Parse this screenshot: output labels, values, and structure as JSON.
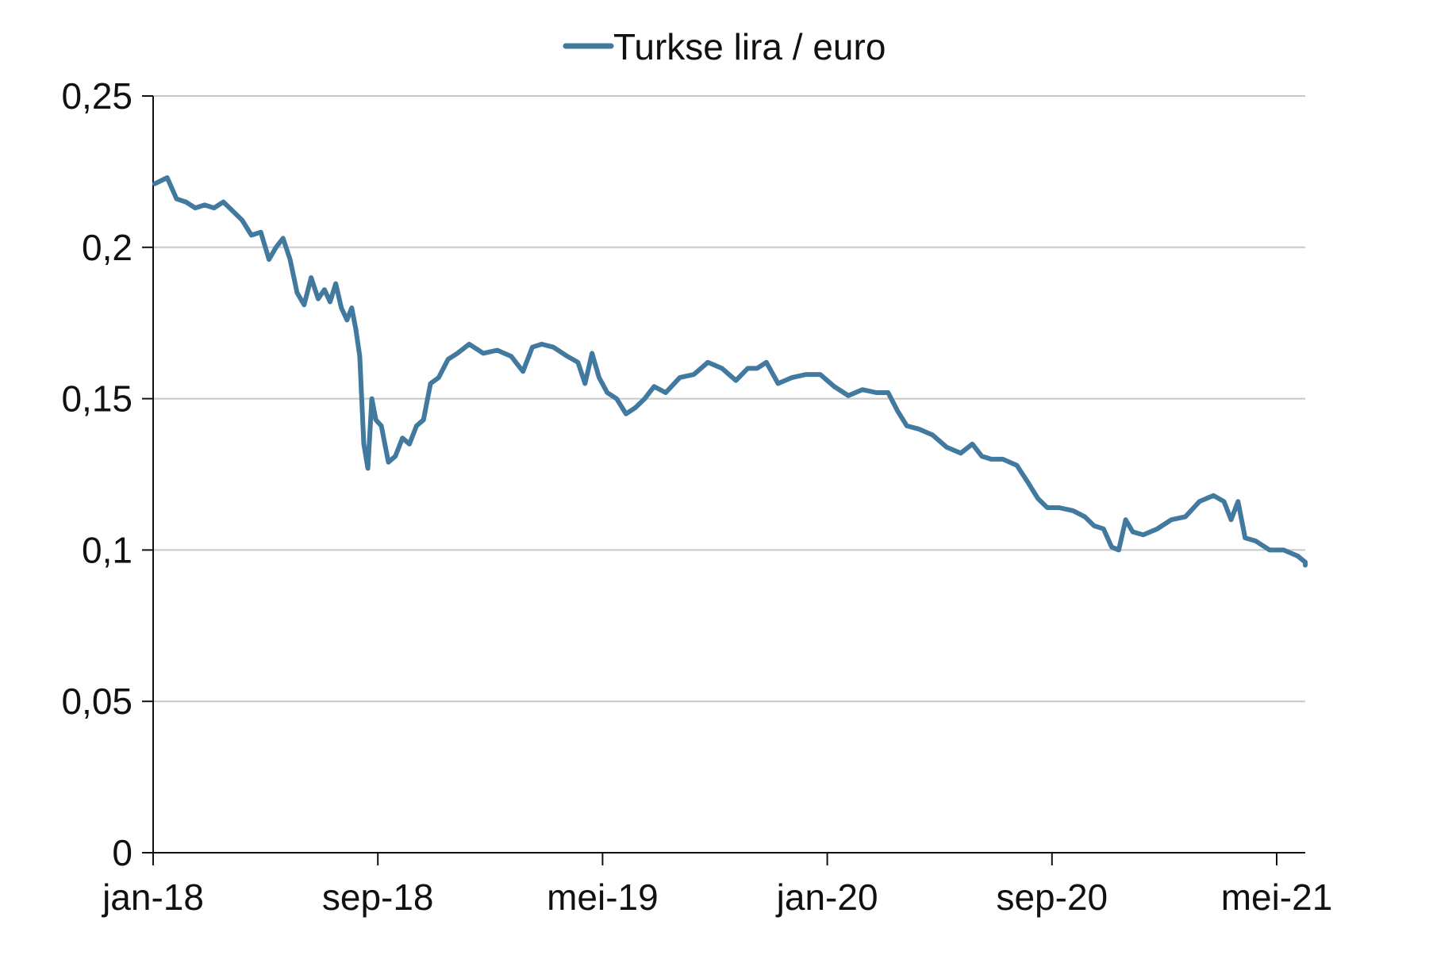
{
  "chart_data": {
    "type": "line",
    "title": "",
    "xlabel": "",
    "ylabel": "",
    "x_tick_labels": [
      "jan-18",
      "sep-18",
      "mei-19",
      "jan-20",
      "sep-20",
      "mei-21"
    ],
    "y_tick_labels": [
      "0",
      "0,05",
      "0,1",
      "0,15",
      "0,2",
      "0,25"
    ],
    "y_ticks": [
      0,
      0.05,
      0.1,
      0.15,
      0.2,
      0.25
    ],
    "ylim": [
      0,
      0.25
    ],
    "xlim": [
      "2018-01",
      "2021-06"
    ],
    "grid": "horizontal",
    "legend": {
      "placement": "top-center",
      "entries": [
        "Turkse lira / euro"
      ]
    },
    "series": [
      {
        "name": "Turkse lira / euro",
        "color": "#41799f",
        "points": [
          [
            "2018-01",
            0.221
          ],
          [
            "2018-01",
            0.223
          ],
          [
            "2018-01",
            0.216
          ],
          [
            "2018-02",
            0.215
          ],
          [
            "2018-02",
            0.213
          ],
          [
            "2018-02",
            0.214
          ],
          [
            "2018-03",
            0.213
          ],
          [
            "2018-03",
            0.215
          ],
          [
            "2018-03",
            0.212
          ],
          [
            "2018-04",
            0.209
          ],
          [
            "2018-04",
            0.204
          ],
          [
            "2018-04",
            0.205
          ],
          [
            "2018-05",
            0.196
          ],
          [
            "2018-05",
            0.2
          ],
          [
            "2018-05",
            0.203
          ],
          [
            "2018-05",
            0.196
          ],
          [
            "2018-06",
            0.185
          ],
          [
            "2018-06",
            0.181
          ],
          [
            "2018-06",
            0.19
          ],
          [
            "2018-06",
            0.183
          ],
          [
            "2018-07",
            0.186
          ],
          [
            "2018-07",
            0.182
          ],
          [
            "2018-07",
            0.188
          ],
          [
            "2018-07",
            0.18
          ],
          [
            "2018-07",
            0.176
          ],
          [
            "2018-08",
            0.18
          ],
          [
            "2018-08",
            0.173
          ],
          [
            "2018-08",
            0.164
          ],
          [
            "2018-08",
            0.135
          ],
          [
            "2018-08",
            0.127
          ],
          [
            "2018-08",
            0.15
          ],
          [
            "2018-08",
            0.143
          ],
          [
            "2018-09",
            0.141
          ],
          [
            "2018-09",
            0.129
          ],
          [
            "2018-09",
            0.131
          ],
          [
            "2018-09",
            0.137
          ],
          [
            "2018-10",
            0.135
          ],
          [
            "2018-10",
            0.141
          ],
          [
            "2018-10",
            0.143
          ],
          [
            "2018-10",
            0.155
          ],
          [
            "2018-11",
            0.157
          ],
          [
            "2018-11",
            0.163
          ],
          [
            "2018-11",
            0.165
          ],
          [
            "2018-12",
            0.168
          ],
          [
            "2018-12",
            0.165
          ],
          [
            "2019-01",
            0.166
          ],
          [
            "2019-01",
            0.164
          ],
          [
            "2019-02",
            0.159
          ],
          [
            "2019-02",
            0.167
          ],
          [
            "2019-02",
            0.168
          ],
          [
            "2019-03",
            0.167
          ],
          [
            "2019-03",
            0.164
          ],
          [
            "2019-04",
            0.162
          ],
          [
            "2019-04",
            0.155
          ],
          [
            "2019-04",
            0.165
          ],
          [
            "2019-04",
            0.157
          ],
          [
            "2019-05",
            0.152
          ],
          [
            "2019-05",
            0.15
          ],
          [
            "2019-05",
            0.145
          ],
          [
            "2019-06",
            0.147
          ],
          [
            "2019-06",
            0.15
          ],
          [
            "2019-06",
            0.154
          ],
          [
            "2019-07",
            0.152
          ],
          [
            "2019-07",
            0.157
          ],
          [
            "2019-08",
            0.158
          ],
          [
            "2019-08",
            0.162
          ],
          [
            "2019-09",
            0.16
          ],
          [
            "2019-09",
            0.156
          ],
          [
            "2019-10",
            0.16
          ],
          [
            "2019-10",
            0.16
          ],
          [
            "2019-10",
            0.162
          ],
          [
            "2019-11",
            0.155
          ],
          [
            "2019-11",
            0.157
          ],
          [
            "2019-12",
            0.158
          ],
          [
            "2019-12",
            0.158
          ],
          [
            "2020-01",
            0.154
          ],
          [
            "2020-01",
            0.151
          ],
          [
            "2020-02",
            0.153
          ],
          [
            "2020-02",
            0.152
          ],
          [
            "2020-03",
            0.152
          ],
          [
            "2020-03",
            0.146
          ],
          [
            "2020-03",
            0.141
          ],
          [
            "2020-04",
            0.14
          ],
          [
            "2020-04",
            0.138
          ],
          [
            "2020-05",
            0.134
          ],
          [
            "2020-05",
            0.132
          ],
          [
            "2020-06",
            0.135
          ],
          [
            "2020-06",
            0.131
          ],
          [
            "2020-06",
            0.13
          ],
          [
            "2020-07",
            0.13
          ],
          [
            "2020-07",
            0.128
          ],
          [
            "2020-08",
            0.122
          ],
          [
            "2020-08",
            0.117
          ],
          [
            "2020-08",
            0.114
          ],
          [
            "2020-09",
            0.114
          ],
          [
            "2020-09",
            0.113
          ],
          [
            "2020-10",
            0.111
          ],
          [
            "2020-10",
            0.108
          ],
          [
            "2020-10",
            0.107
          ],
          [
            "2020-11",
            0.101
          ],
          [
            "2020-11",
            0.1
          ],
          [
            "2020-11",
            0.11
          ],
          [
            "2020-11",
            0.106
          ],
          [
            "2020-12",
            0.105
          ],
          [
            "2020-12",
            0.107
          ],
          [
            "2021-01",
            0.11
          ],
          [
            "2021-01",
            0.111
          ],
          [
            "2021-02",
            0.116
          ],
          [
            "2021-02",
            0.118
          ],
          [
            "2021-03",
            0.116
          ],
          [
            "2021-03",
            0.11
          ],
          [
            "2021-03",
            0.116
          ],
          [
            "2021-03",
            0.104
          ],
          [
            "2021-04",
            0.103
          ],
          [
            "2021-04",
            0.1
          ],
          [
            "2021-05",
            0.1
          ],
          [
            "2021-05",
            0.098
          ],
          [
            "2021-06",
            0.096
          ],
          [
            "2021-06",
            0.095
          ]
        ]
      }
    ]
  }
}
